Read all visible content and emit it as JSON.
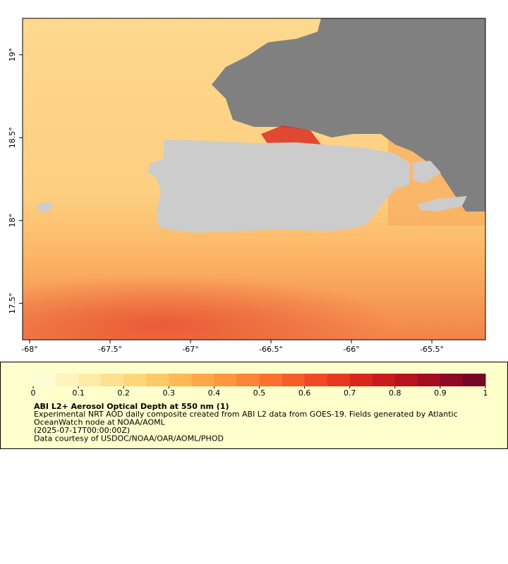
{
  "map": {
    "xlim": [
      -68.044,
      -65.167
    ],
    "ylim": [
      17.28,
      19.22
    ],
    "xticks": [
      {
        "value": -68,
        "label": "-68°"
      },
      {
        "value": -67.5,
        "label": "-67.5°"
      },
      {
        "value": -67,
        "label": "-67°"
      },
      {
        "value": -66.5,
        "label": "-66.5°"
      },
      {
        "value": -66,
        "label": "-66°"
      },
      {
        "value": -65.5,
        "label": "-65.5°"
      }
    ],
    "yticks": [
      {
        "value": 17.5,
        "label": "17.5°"
      },
      {
        "value": 18,
        "label": "18°"
      },
      {
        "value": 18.5,
        "label": "18.5°"
      },
      {
        "value": 19,
        "label": "19°"
      }
    ]
  },
  "colorbar": {
    "lim": [
      0,
      1
    ],
    "ticks": [
      0,
      0.1,
      0.2,
      0.3,
      0.4,
      0.5,
      0.6,
      0.7,
      0.8,
      0.9,
      1
    ],
    "colors": [
      "#fffbd6",
      "#fff3c0",
      "#ffeaa8",
      "#ffe08f",
      "#fed679",
      "#fec966",
      "#feb954",
      "#fda847",
      "#fd963d",
      "#fc8434",
      "#fa702d",
      "#f65d28",
      "#ef4a23",
      "#e5381f",
      "#d8261d",
      "#c91a1e",
      "#b7121f",
      "#a30c21",
      "#8c0824",
      "#760526"
    ]
  },
  "caption": {
    "title": "ABI L2+ Aerosol Optical Depth at 550 nm (1)",
    "lines": [
      "Experimental NRT AOD daily composite created from ABI L2 data from GOES-19. Fields generated by Atlantic",
      "OceanWatch node at NOAA/AOML",
      "(2025-07-17T00:00:00Z)",
      "Data courtesy of USDOC/NOAA/OAR/AOML/PHOD"
    ]
  }
}
